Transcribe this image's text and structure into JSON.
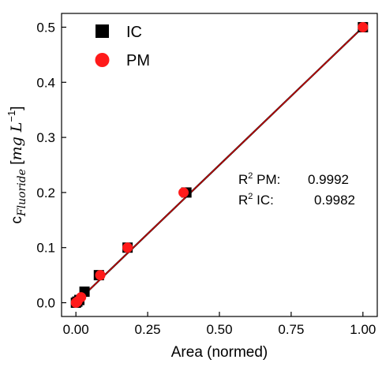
{
  "chart_data": {
    "type": "scatter",
    "xlabel": "Area (normed)",
    "ylabel": {
      "main": "c",
      "subscript": "Fluoride",
      "unit_open": " [",
      "unit": "mg L",
      "unit_exp": "−1",
      "unit_close": "]"
    },
    "xlim": [
      -0.05,
      1.05
    ],
    "ylim": [
      -0.025,
      0.525
    ],
    "xticks": [
      {
        "value": 0.0,
        "label": "0.00"
      },
      {
        "value": 0.25,
        "label": "0.25"
      },
      {
        "value": 0.5,
        "label": "0.50"
      },
      {
        "value": 0.75,
        "label": "0.75"
      },
      {
        "value": 1.0,
        "label": "1.00"
      }
    ],
    "yticks": [
      {
        "value": 0.0,
        "label": "0.0"
      },
      {
        "value": 0.1,
        "label": "0.1"
      },
      {
        "value": 0.2,
        "label": "0.2"
      },
      {
        "value": 0.3,
        "label": "0.3"
      },
      {
        "value": 0.4,
        "label": "0.4"
      },
      {
        "value": 0.5,
        "label": "0.5"
      }
    ],
    "grid": false,
    "legend_placement": "top-left",
    "series": [
      {
        "name": "IC",
        "marker": "square",
        "color": "#000000",
        "points": [
          {
            "x": 0.0,
            "y": 0.0
          },
          {
            "x": 0.005,
            "y": 0.002
          },
          {
            "x": 0.012,
            "y": 0.005
          },
          {
            "x": 0.03,
            "y": 0.02
          },
          {
            "x": 0.08,
            "y": 0.05
          },
          {
            "x": 0.18,
            "y": 0.1
          },
          {
            "x": 0.385,
            "y": 0.2
          },
          {
            "x": 1.0,
            "y": 0.5
          }
        ],
        "fit": {
          "x": [
            0.0,
            1.0
          ],
          "y": [
            0.0,
            0.5
          ],
          "color": "#000000"
        }
      },
      {
        "name": "PM",
        "marker": "circle",
        "color": "#ff1a1a",
        "points": [
          {
            "x": 0.0,
            "y": 0.0
          },
          {
            "x": 0.005,
            "y": 0.002
          },
          {
            "x": 0.018,
            "y": 0.01
          },
          {
            "x": 0.085,
            "y": 0.05
          },
          {
            "x": 0.18,
            "y": 0.1
          },
          {
            "x": 0.375,
            "y": 0.2
          },
          {
            "x": 1.0,
            "y": 0.5
          }
        ],
        "fit": {
          "x": [
            0.0,
            1.0
          ],
          "y": [
            0.0,
            0.5
          ],
          "color": "#cc0000"
        }
      }
    ],
    "annotations": [
      {
        "label": "R",
        "sup": "2",
        "name": " PM:",
        "value": "0.9992"
      },
      {
        "label": "R",
        "sup": "2",
        "name": " IC:",
        "value": "0.9982"
      }
    ]
  }
}
